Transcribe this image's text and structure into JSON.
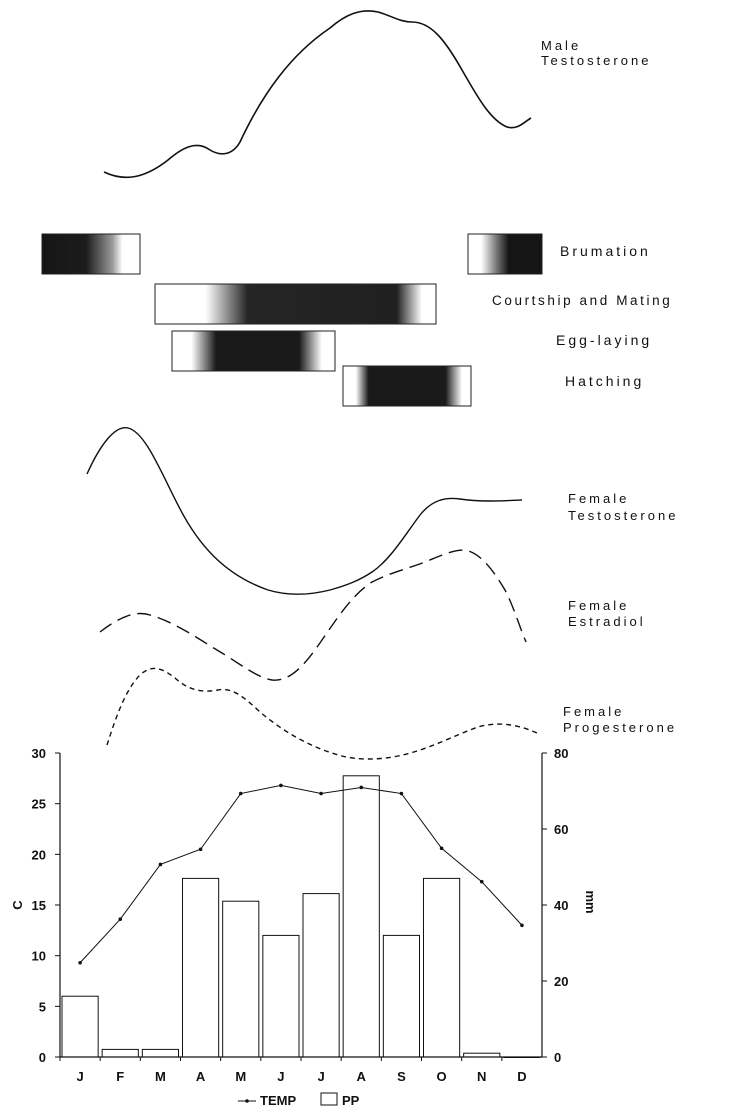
{
  "colors": {
    "ink": "#111111",
    "bar_fill": "#ffffff",
    "band_dark": "#151515"
  },
  "hormones": {
    "male_testosterone": {
      "label_line1": "Male",
      "label_line2": "Testosterone"
    },
    "female_testosterone": {
      "label_line1": "Female",
      "label_line2": "Testosterone"
    },
    "female_estradiol": {
      "label_line1": "Female",
      "label_line2": "Estradiol"
    },
    "female_progesterone": {
      "label_line1": "Female",
      "label_line2": "Progesterone"
    }
  },
  "phases": {
    "brumation": {
      "label": "Brumation"
    },
    "courtship": {
      "label": "Courtship and Mating"
    },
    "egg_laying": {
      "label": "Egg-laying"
    },
    "hatching": {
      "label": "Hatching"
    }
  },
  "chart_data": {
    "type": "bar",
    "categories": [
      "J",
      "F",
      "M",
      "A",
      "M",
      "J",
      "J",
      "A",
      "S",
      "O",
      "N",
      "D"
    ],
    "ylabel": "C",
    "y2label": "mm",
    "ylim": [
      0,
      30
    ],
    "y2lim": [
      0,
      80
    ],
    "yticks": [
      "0",
      "5",
      "10",
      "15",
      "20",
      "25",
      "30"
    ],
    "y2ticks": [
      "0",
      "20",
      "40",
      "60",
      "80"
    ],
    "series": [
      {
        "name": "TEMP",
        "type": "line",
        "axis": "left",
        "values": [
          9.3,
          13.6,
          19.0,
          20.5,
          26.0,
          26.8,
          26.0,
          26.6,
          26.0,
          20.6,
          17.3,
          13.0
        ]
      },
      {
        "name": "PP",
        "type": "bar",
        "axis": "right",
        "values": [
          16,
          2,
          2,
          47,
          41,
          32,
          43,
          74,
          32,
          47,
          1,
          0
        ]
      }
    ],
    "legend": {
      "position": "bottom",
      "items": [
        "TEMP",
        "PP"
      ]
    }
  }
}
